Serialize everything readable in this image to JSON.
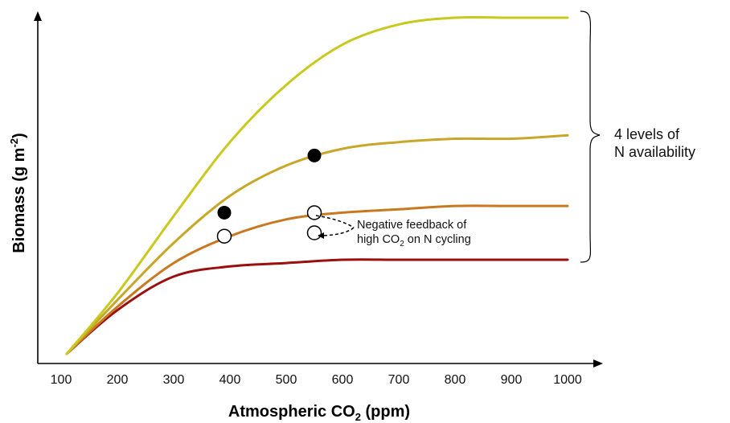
{
  "chart_data": {
    "type": "line",
    "x_ticks": [
      100,
      200,
      300,
      400,
      500,
      600,
      700,
      800,
      900,
      1000
    ],
    "xlim": [
      100,
      1000
    ],
    "ylabel_main": "Biomass (g m",
    "ylabel_sup": "-2",
    "ylabel_close": ")",
    "xlabel_main": "Atmospheric CO",
    "xlabel_sub": "2",
    "xlabel_close": " (ppm)",
    "series": [
      {
        "color": "#c8c81e",
        "x": [
          110,
          200,
          300,
          400,
          500,
          600,
          700,
          800,
          900,
          1000
        ],
        "y": [
          0.0,
          0.18,
          0.41,
          0.63,
          0.8,
          0.92,
          0.98,
          1.0,
          1.0,
          1.0
        ]
      },
      {
        "color": "#c8a628",
        "x": [
          110,
          200,
          300,
          400,
          500,
          600,
          700,
          800,
          900,
          1000
        ],
        "y": [
          0.0,
          0.16,
          0.33,
          0.47,
          0.56,
          0.61,
          0.63,
          0.64,
          0.64,
          0.65
        ]
      },
      {
        "color": "#c8781e",
        "x": [
          110,
          200,
          300,
          400,
          500,
          600,
          700,
          800,
          900,
          1000
        ],
        "y": [
          0.0,
          0.14,
          0.27,
          0.35,
          0.4,
          0.42,
          0.43,
          0.44,
          0.44,
          0.44
        ]
      },
      {
        "color": "#9b0f0f",
        "x": [
          110,
          200,
          300,
          400,
          500,
          600,
          700,
          800,
          900,
          1000
        ],
        "y": [
          0.0,
          0.13,
          0.23,
          0.26,
          0.27,
          0.28,
          0.28,
          0.28,
          0.28,
          0.28
        ]
      }
    ],
    "filled_points": [
      {
        "x": 390,
        "y": 0.42
      },
      {
        "x": 550,
        "y": 0.59
      }
    ],
    "open_points": [
      {
        "x": 390,
        "y": 0.35
      },
      {
        "x": 550,
        "y": 0.42
      },
      {
        "x": 550,
        "y": 0.36
      }
    ],
    "feedback_annotation": {
      "line1": "Negative feedback of",
      "line2_pre": "high CO",
      "line2_sub": "2",
      "line2_post": " on N cycling"
    },
    "bracket_label": {
      "line1": "4 levels of",
      "line2": "N availability"
    }
  }
}
